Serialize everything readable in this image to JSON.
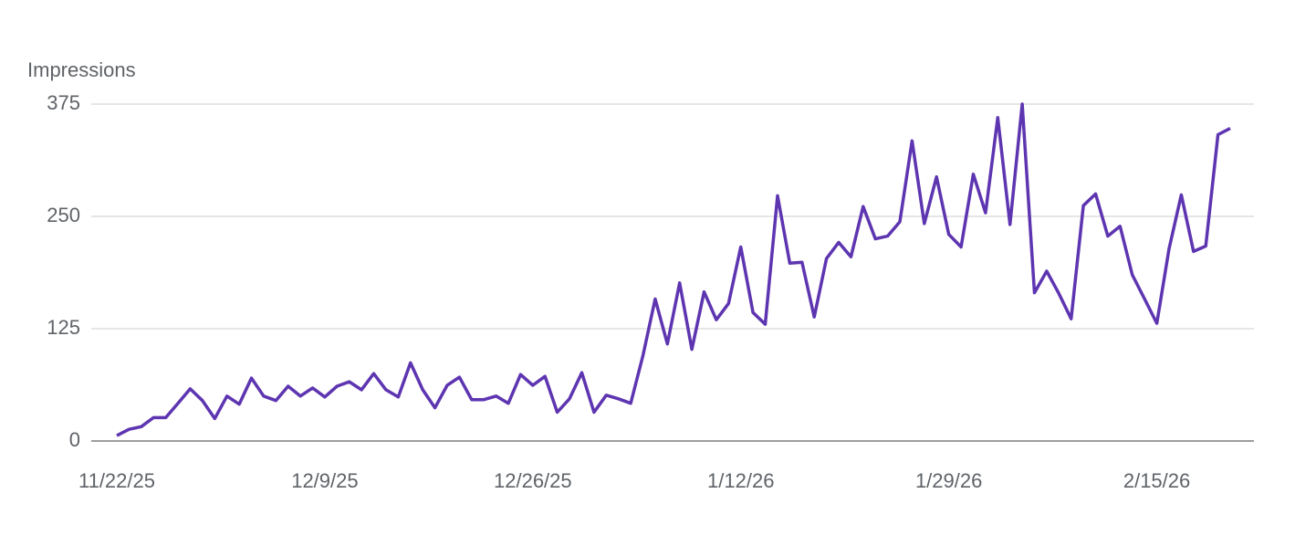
{
  "chart_data": {
    "type": "line",
    "title": "Impressions",
    "categories": [
      "11/22/25",
      null,
      null,
      null,
      null,
      null,
      null,
      null,
      null,
      null,
      null,
      null,
      null,
      null,
      null,
      null,
      null,
      "12/9/25",
      null,
      null,
      null,
      null,
      null,
      null,
      null,
      null,
      null,
      null,
      null,
      null,
      null,
      null,
      null,
      null,
      "12/26/25",
      null,
      null,
      null,
      null,
      null,
      null,
      null,
      null,
      null,
      null,
      null,
      null,
      null,
      null,
      null,
      null,
      "1/12/26",
      null,
      null,
      null,
      null,
      null,
      null,
      null,
      null,
      null,
      null,
      null,
      null,
      null,
      null,
      null,
      null,
      "1/29/26",
      null,
      null,
      null,
      null,
      null,
      null,
      null,
      null,
      null,
      null,
      null,
      null,
      null,
      null,
      null,
      null,
      "2/15/26",
      null,
      null,
      null,
      null,
      null,
      null
    ],
    "series": [
      {
        "name": "Impressions",
        "color": "#5e35b1",
        "values": [
          6,
          13,
          16,
          26,
          26,
          42,
          58,
          45,
          25,
          50,
          41,
          70,
          50,
          45,
          61,
          50,
          59,
          49,
          61,
          66,
          57,
          75,
          57,
          49,
          87,
          57,
          37,
          62,
          71,
          46,
          46,
          50,
          42,
          74,
          62,
          72,
          32,
          47,
          76,
          32,
          51,
          47,
          42,
          95,
          158,
          108,
          176,
          102,
          166,
          135,
          153,
          216,
          143,
          130,
          273,
          198,
          199,
          138,
          203,
          221,
          205,
          261,
          225,
          228,
          244,
          334,
          242,
          294,
          230,
          216,
          297,
          254,
          360,
          241,
          375,
          165,
          189,
          164,
          136,
          262,
          275,
          228,
          239,
          185,
          158,
          131,
          214,
          274,
          211,
          217,
          341,
          348
        ]
      }
    ],
    "ylim": [
      0,
      375
    ],
    "yticks": [
      0,
      125,
      250,
      375
    ],
    "grid": true
  }
}
